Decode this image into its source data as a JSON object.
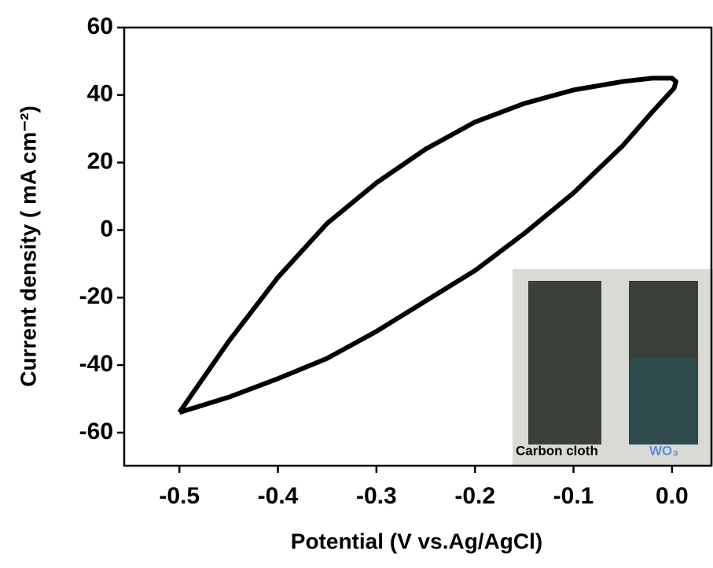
{
  "chart_data": {
    "type": "line",
    "xlabel": "Potential (V vs.Ag/AgCl)",
    "ylabel": "Current density ( mA cm⁻²)",
    "series": [
      {
        "color": "#000000",
        "x": [
          -0.5,
          -0.45,
          -0.4,
          -0.35,
          -0.3,
          -0.25,
          -0.2,
          -0.15,
          -0.1,
          -0.05,
          -0.02,
          0,
          0.004,
          0.002,
          -0.02,
          -0.05,
          -0.1,
          -0.15,
          -0.2,
          -0.25,
          -0.3,
          -0.35,
          -0.4,
          -0.45,
          -0.5
        ],
        "values": [
          -54,
          -33,
          -14,
          2,
          14,
          24,
          32,
          37.5,
          41.5,
          44,
          45,
          45,
          44,
          42,
          35,
          25,
          11,
          -1,
          -12,
          -21,
          -30,
          -38,
          -44,
          -49.5,
          -54
        ]
      }
    ],
    "xlim": [
      -0.556,
      0.04
    ],
    "xticks": [
      -0.5,
      -0.4,
      -0.3,
      -0.2,
      -0.1,
      {
        "value": 0,
        "label": "0.0"
      }
    ],
    "ylim": [
      -69.8,
      60
    ],
    "yticks": [
      60,
      40,
      20,
      0,
      -20,
      -40,
      -60
    ],
    "inset_labels": [
      "Carbon cloth",
      "WO₃"
    ]
  }
}
